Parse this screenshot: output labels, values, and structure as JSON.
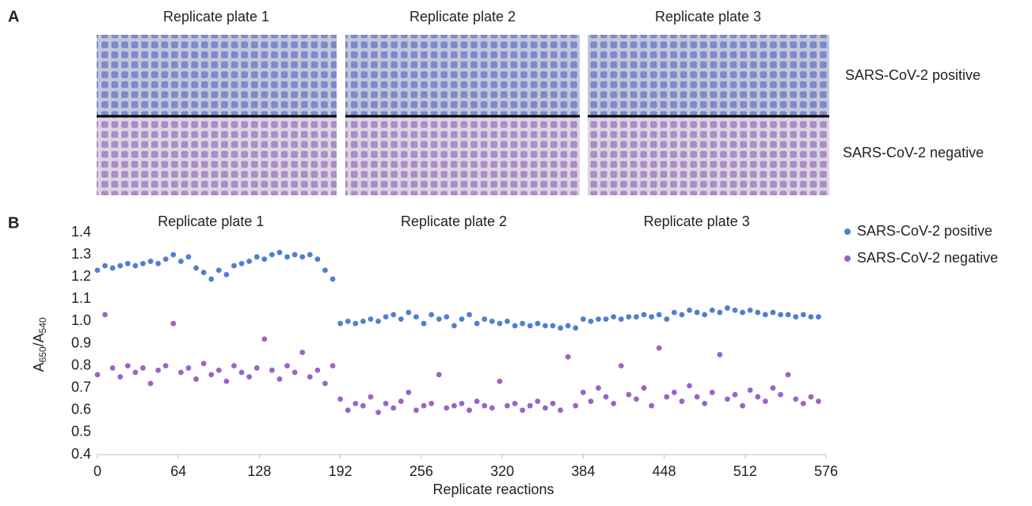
{
  "panel_a": {
    "label": "A",
    "plates": [
      "Replicate plate 1",
      "Replicate plate 2",
      "Replicate plate 3"
    ],
    "rows": [
      "SARS-CoV-2 positive",
      "SARS-CoV-2 negative"
    ]
  },
  "panel_b_label": "B",
  "chart_data": {
    "type": "scatter",
    "annotations": [
      "Replicate plate 1",
      "Replicate plate 2",
      "Replicate plate 3"
    ],
    "xlabel": "Replicate reactions",
    "ylabel": [
      "A",
      "650",
      "/A",
      "540"
    ],
    "xlim": [
      0,
      576
    ],
    "ylim": [
      0.4,
      1.4
    ],
    "xticks": [
      0,
      64,
      128,
      192,
      256,
      320,
      384,
      448,
      512,
      576
    ],
    "yticks": [
      0.4,
      0.5,
      0.6,
      0.7,
      0.8,
      0.9,
      {
        "value": 1,
        "label": "1.0"
      },
      1.1,
      1.2,
      1.3,
      1.4
    ],
    "grid": false,
    "legend": "right",
    "x": [
      0,
      6,
      12,
      18,
      24,
      30,
      36,
      42,
      48,
      54,
      60,
      66,
      72,
      78,
      84,
      90,
      96,
      102,
      108,
      114,
      120,
      126,
      132,
      138,
      144,
      150,
      156,
      162,
      168,
      174,
      180,
      186,
      192,
      198,
      204,
      210,
      216,
      222,
      228,
      234,
      240,
      246,
      252,
      258,
      264,
      270,
      276,
      282,
      288,
      294,
      300,
      306,
      312,
      318,
      324,
      330,
      336,
      342,
      348,
      354,
      360,
      366,
      372,
      378,
      384,
      390,
      396,
      402,
      408,
      414,
      420,
      426,
      432,
      438,
      444,
      450,
      456,
      462,
      468,
      474,
      480,
      486,
      492,
      498,
      504,
      510,
      516,
      522,
      528,
      534,
      540,
      546,
      552,
      558,
      564,
      570
    ],
    "series": [
      {
        "name": "SARS-CoV-2 positive",
        "color": "#4f7fd0",
        "values": [
          1.23,
          1.25,
          1.24,
          1.25,
          1.26,
          1.25,
          1.26,
          1.27,
          1.26,
          1.28,
          1.3,
          1.27,
          1.29,
          1.24,
          1.22,
          1.19,
          1.23,
          1.21,
          1.25,
          1.26,
          1.27,
          1.29,
          1.28,
          1.3,
          1.31,
          1.29,
          1.3,
          1.29,
          1.3,
          1.28,
          1.23,
          1.19,
          0.99,
          1.0,
          0.99,
          1.0,
          1.01,
          1.0,
          1.02,
          1.03,
          1.01,
          1.04,
          1.02,
          0.99,
          1.03,
          1.01,
          1.02,
          0.98,
          1.01,
          1.03,
          0.99,
          1.01,
          1.0,
          0.99,
          1.0,
          0.98,
          0.99,
          0.98,
          0.99,
          0.98,
          0.98,
          0.97,
          0.98,
          0.97,
          1.01,
          1.0,
          1.01,
          1.01,
          1.02,
          1.01,
          1.02,
          1.02,
          1.03,
          1.02,
          1.03,
          1.01,
          1.04,
          1.03,
          1.05,
          1.04,
          1.03,
          1.05,
          1.04,
          1.06,
          1.05,
          1.04,
          1.05,
          1.04,
          1.03,
          1.04,
          1.03,
          1.03,
          1.02,
          1.03,
          1.02,
          1.02
        ]
      },
      {
        "name": "SARS-CoV-2 negative",
        "color": "#9a63c8",
        "values": [
          0.76,
          1.03,
          0.79,
          0.75,
          0.8,
          0.77,
          0.79,
          0.72,
          0.78,
          0.8,
          0.99,
          0.77,
          0.79,
          0.74,
          0.81,
          0.76,
          0.78,
          0.73,
          0.8,
          0.77,
          0.75,
          0.79,
          0.92,
          0.78,
          0.74,
          0.8,
          0.77,
          0.86,
          0.75,
          0.78,
          0.72,
          0.8,
          0.65,
          0.6,
          0.63,
          0.62,
          0.66,
          0.59,
          0.63,
          0.61,
          0.64,
          0.68,
          0.6,
          0.62,
          0.63,
          0.76,
          0.61,
          0.62,
          0.63,
          0.6,
          0.64,
          0.62,
          0.61,
          0.73,
          0.62,
          0.63,
          0.6,
          0.62,
          0.64,
          0.61,
          0.63,
          0.6,
          0.84,
          0.62,
          0.68,
          0.64,
          0.7,
          0.66,
          0.63,
          0.8,
          0.67,
          0.65,
          0.7,
          0.62,
          0.88,
          0.66,
          0.68,
          0.64,
          0.71,
          0.66,
          0.63,
          0.68,
          0.85,
          0.65,
          0.67,
          0.62,
          0.69,
          0.66,
          0.64,
          0.7,
          0.67,
          0.76,
          0.65,
          0.63,
          0.66,
          0.64
        ]
      }
    ]
  }
}
